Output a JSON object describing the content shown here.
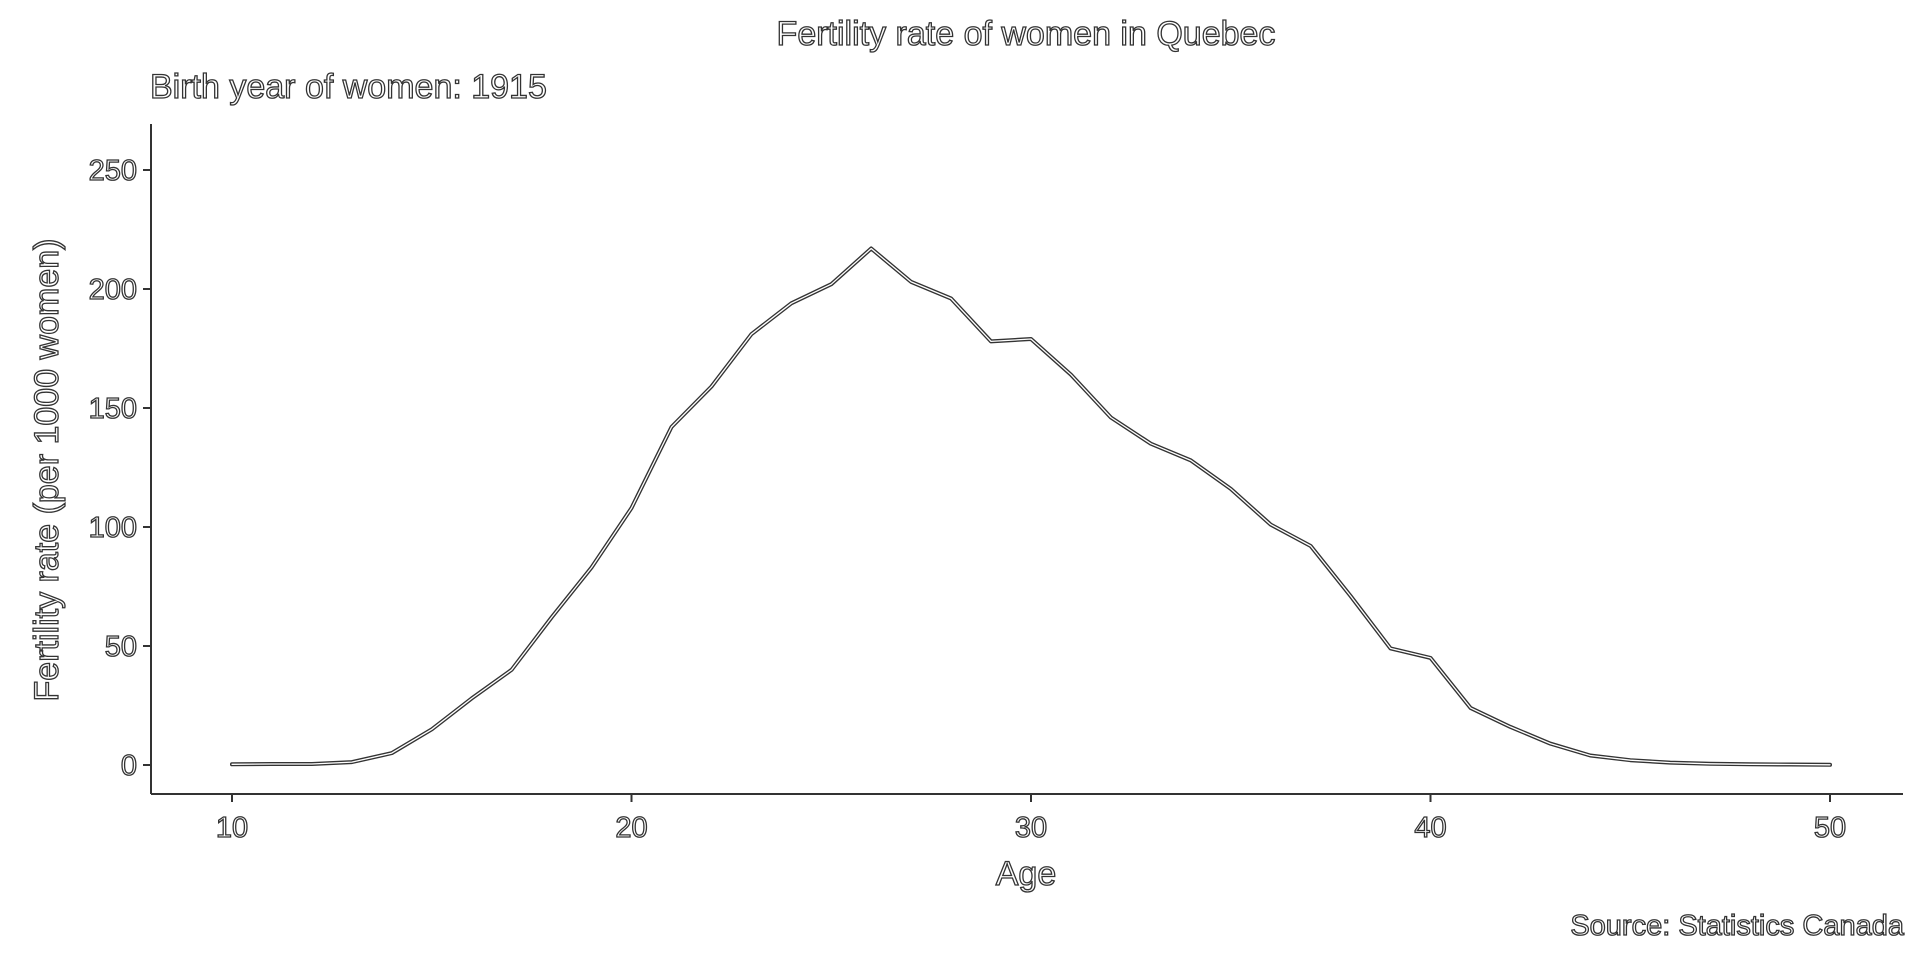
{
  "chart_data": {
    "type": "line",
    "title": "Fertility rate of women in Quebec",
    "subtitle": "Birth year of women: 1915",
    "xlabel": "Age",
    "ylabel": "Fertility rate (per 1000 women)",
    "caption": "Source: Statistics Canada",
    "xlim": [
      8,
      52
    ],
    "ylim": [
      -12,
      270
    ],
    "x_ticks": [
      10,
      20,
      30,
      40,
      50
    ],
    "y_ticks": [
      0,
      50,
      100,
      150,
      200,
      250
    ],
    "grid": false,
    "legend": "none",
    "line_color": "#333333",
    "x": [
      10,
      11,
      12,
      13,
      14,
      15,
      16,
      17,
      18,
      19,
      20,
      21,
      22,
      23,
      24,
      25,
      26,
      27,
      28,
      29,
      30,
      31,
      32,
      33,
      34,
      35,
      36,
      37,
      38,
      39,
      40,
      41,
      42,
      43,
      44,
      45,
      46,
      47,
      48,
      49,
      50
    ],
    "values": [
      0.3,
      0.4,
      0.4,
      1.2,
      5,
      15,
      28,
      40,
      62,
      83,
      108,
      142,
      159,
      181,
      194,
      202,
      217,
      203,
      196,
      178,
      179,
      164,
      146,
      135,
      128,
      116,
      101,
      92,
      71,
      49,
      45,
      24,
      16,
      9,
      4,
      2,
      1,
      0.5,
      0.3,
      0.2,
      0.1
    ]
  }
}
